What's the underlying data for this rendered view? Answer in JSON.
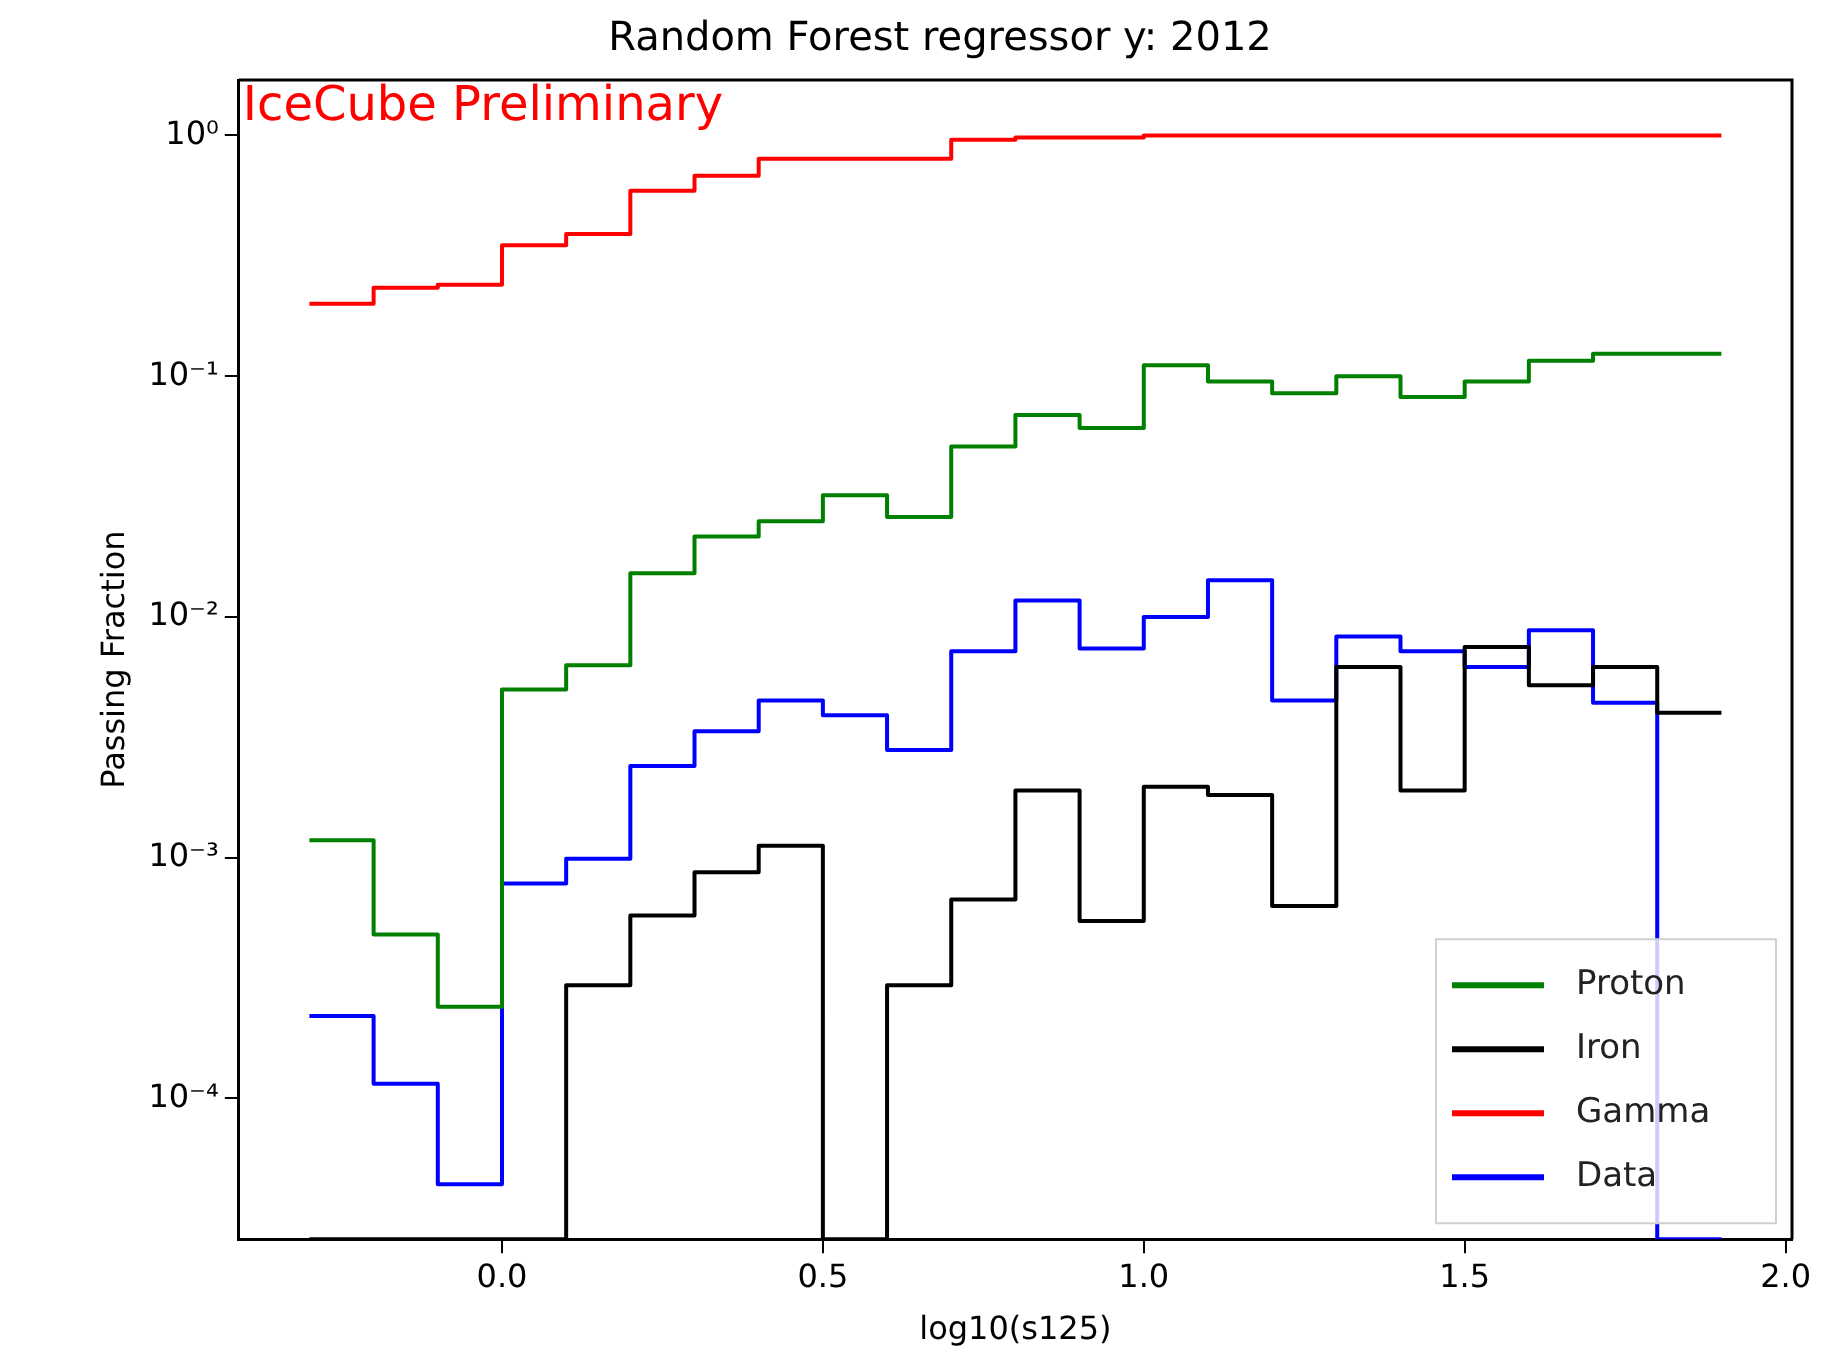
{
  "chart_data": {
    "type": "histogram",
    "title": "Random Forest regressor y: 2012",
    "xlabel": "log10(s125)",
    "ylabel": "Passing Fraction",
    "annotations": [
      "IceCube Preliminary"
    ],
    "bins": [
      -0.3,
      -0.2,
      -0.1,
      0.0,
      0.1,
      0.2,
      0.3,
      0.4,
      0.5,
      0.6,
      0.7,
      0.8,
      0.9,
      1.0,
      1.1,
      1.2,
      1.3,
      1.4,
      1.5,
      1.6,
      1.7,
      1.8,
      1.9
    ],
    "series": [
      {
        "name": "Proton",
        "color": "#008000",
        "values": [
          0.00118,
          0.00048,
          0.00024,
          0.005,
          0.0063,
          0.0152,
          0.0216,
          0.025,
          0.032,
          0.026,
          0.051,
          0.069,
          0.061,
          0.111,
          0.095,
          0.085,
          0.1,
          0.082,
          0.095,
          0.116,
          0.124,
          0.124
        ]
      },
      {
        "name": "Iron",
        "color": "#000000",
        "values": [
          null,
          null,
          null,
          null,
          0.000295,
          0.000575,
          0.00087,
          0.00112,
          null,
          0.000295,
          0.00067,
          0.0019,
          0.000545,
          0.00197,
          0.00182,
          0.00063,
          0.0062,
          0.0019,
          0.0075,
          0.0052,
          0.0062,
          0.004
        ]
      },
      {
        "name": "Gamma",
        "color": "#ff0000",
        "values": [
          0.2,
          0.233,
          0.24,
          0.35,
          0.39,
          0.59,
          0.68,
          0.8,
          0.8,
          0.8,
          0.96,
          0.98,
          0.98,
          1.0,
          1.0,
          1.0,
          1.0,
          1.0,
          1.0,
          1.0,
          1.0,
          1.0
        ]
      },
      {
        "name": "Data",
        "color": "#0000ff",
        "values": [
          0.00022,
          0.000115,
          4.4e-05,
          0.00078,
          0.00099,
          0.0024,
          0.00335,
          0.0045,
          0.0039,
          0.0028,
          0.0072,
          0.0117,
          0.0074,
          0.01,
          0.0142,
          0.0045,
          0.0083,
          0.0072,
          0.0062,
          0.0088,
          0.0044,
          null
        ]
      }
    ],
    "xlim": [
      -0.41,
      2.01
    ],
    "ylim": [
      2.6e-05,
      1.7
    ],
    "xticks": [
      {
        "value": 0,
        "label": "0.0"
      },
      {
        "value": 0.5,
        "label": "0.5"
      },
      {
        "value": 1,
        "label": "1.0"
      },
      {
        "value": 1.5,
        "label": "1.5"
      },
      {
        "value": 2,
        "label": "2.0"
      }
    ],
    "yticks": [
      {
        "value": 0.0001,
        "label": "10⁻⁴"
      },
      {
        "value": 0.001,
        "label": "10⁻³"
      },
      {
        "value": 0.01,
        "label": "10⁻²"
      },
      {
        "value": 0.1,
        "label": "10⁻¹"
      },
      {
        "value": 1,
        "label": "10⁰"
      }
    ],
    "log": true,
    "grid": false,
    "legend": "bottom right",
    "line_style": "solid",
    "marker": "none"
  }
}
